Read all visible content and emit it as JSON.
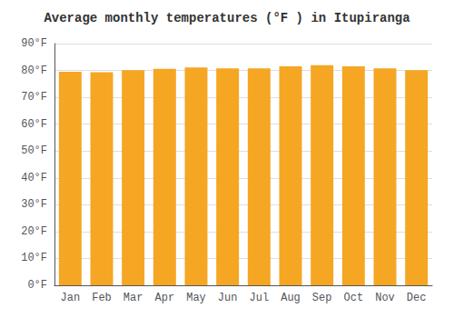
{
  "chart_data": {
    "type": "bar",
    "title": "Average monthly temperatures (°F ) in Itupiranga",
    "categories": [
      "Jan",
      "Feb",
      "Mar",
      "Apr",
      "May",
      "Jun",
      "Jul",
      "Aug",
      "Sep",
      "Oct",
      "Nov",
      "Dec"
    ],
    "values": [
      79.5,
      79.3,
      80.1,
      80.6,
      81.1,
      80.8,
      80.8,
      81.5,
      82.0,
      81.5,
      80.8,
      80.1
    ],
    "color": "#F5A623",
    "ylim": [
      0,
      90
    ],
    "yticks": [
      {
        "value": 0,
        "label": "0°F"
      },
      {
        "value": 10,
        "label": "10°F"
      },
      {
        "value": 20,
        "label": "20°F"
      },
      {
        "value": 30,
        "label": "30°F"
      },
      {
        "value": 40,
        "label": "40°F"
      },
      {
        "value": 50,
        "label": "50°F"
      },
      {
        "value": 60,
        "label": "60°F"
      },
      {
        "value": 70,
        "label": "70°F"
      },
      {
        "value": 80,
        "label": "80°F"
      },
      {
        "value": 90,
        "label": "90°F"
      }
    ],
    "grid": true
  }
}
